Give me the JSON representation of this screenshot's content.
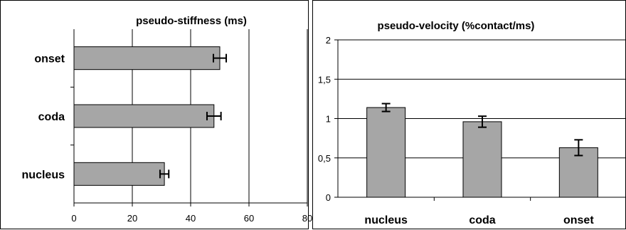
{
  "chart_data": [
    {
      "type": "bar",
      "orientation": "horizontal",
      "title": "pseudo-stiffness (ms)",
      "categories": [
        "onset",
        "coda",
        "nucleus"
      ],
      "values": [
        50,
        48,
        31
      ],
      "errors": [
        2.2,
        2.4,
        1.5
      ],
      "xlim": [
        0,
        80
      ],
      "ticks": [
        "0",
        "20",
        "40",
        "60",
        "80"
      ],
      "grid": true,
      "bar_color": "#a6a6a6"
    },
    {
      "type": "bar",
      "orientation": "vertical",
      "title": "pseudo-velocity (%contact/ms)",
      "categories": [
        "nucleus",
        "coda",
        "onset"
      ],
      "values": [
        1.14,
        0.96,
        0.63
      ],
      "errors": [
        0.05,
        0.07,
        0.1
      ],
      "ylim": [
        0,
        2
      ],
      "ticks": [
        "0",
        "0,5",
        "1",
        "1,5",
        "2"
      ],
      "grid": true,
      "bar_color": "#a6a6a6"
    }
  ]
}
